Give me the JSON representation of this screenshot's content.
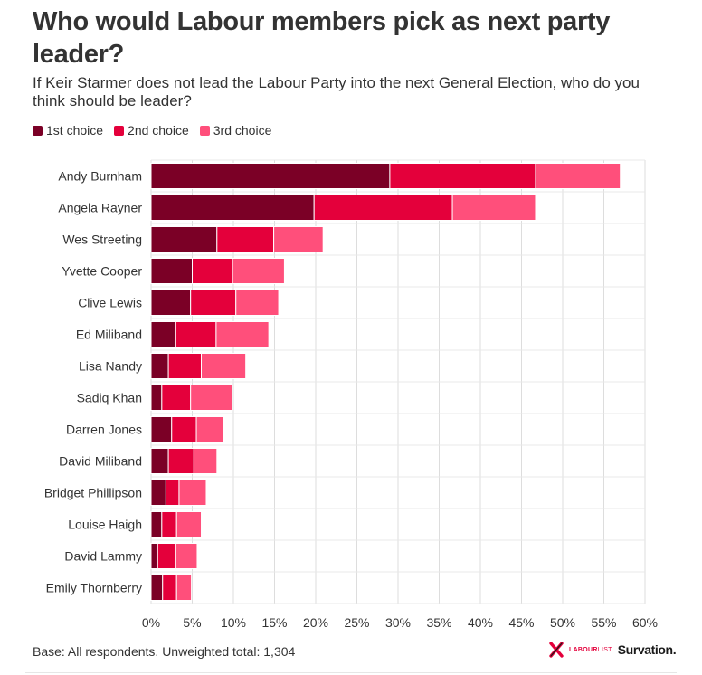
{
  "header": {
    "title": "Who would Labour members pick as next party leader?",
    "subtitle": "If Keir Starmer does not lead the Labour Party into the next General Election, who do you think should be leader?"
  },
  "footer": {
    "note": "Base: All respondents. Unweighted total: 1,304",
    "logo_labourlist_bold": "LABOUR",
    "logo_labourlist_light": "LIST",
    "logo_survation": "Survation."
  },
  "colors": {
    "first": "#7b0026",
    "second": "#e4003b",
    "third": "#ff4f7b",
    "grid": "#dddddd"
  },
  "chart_data": {
    "type": "bar",
    "orientation": "horizontal",
    "stacked": true,
    "categories": [
      "Andy Burnham",
      "Angela Rayner",
      "Wes Streeting",
      "Yvette Cooper",
      "Clive Lewis",
      "Ed Miliband",
      "Lisa Nandy",
      "Sadiq Khan",
      "Darren Jones",
      "David Miliband",
      "Bridget Phillipson",
      "Louise Haigh",
      "David Lammy",
      "Emily Thornberry"
    ],
    "series": [
      {
        "name": "1st choice",
        "values": [
          29.0,
          19.8,
          8.0,
          5.0,
          4.8,
          3.0,
          2.1,
          1.3,
          2.5,
          2.1,
          1.8,
          1.3,
          0.8,
          1.4
        ]
      },
      {
        "name": "2nd choice",
        "values": [
          17.7,
          16.8,
          6.9,
          4.9,
          5.5,
          4.9,
          4.0,
          3.5,
          3.0,
          3.1,
          1.6,
          1.8,
          2.2,
          1.7
        ]
      },
      {
        "name": "3rd choice",
        "values": [
          10.3,
          10.1,
          6.0,
          6.3,
          5.2,
          6.4,
          5.4,
          5.1,
          3.3,
          2.8,
          3.3,
          3.0,
          2.6,
          1.8
        ]
      }
    ],
    "x_ticks": [
      "0%",
      "5%",
      "10%",
      "15%",
      "20%",
      "25%",
      "30%",
      "35%",
      "40%",
      "45%",
      "50%",
      "55%",
      "60%"
    ],
    "xlim": [
      0,
      60
    ],
    "grid": true,
    "legend_position": "top-left"
  }
}
